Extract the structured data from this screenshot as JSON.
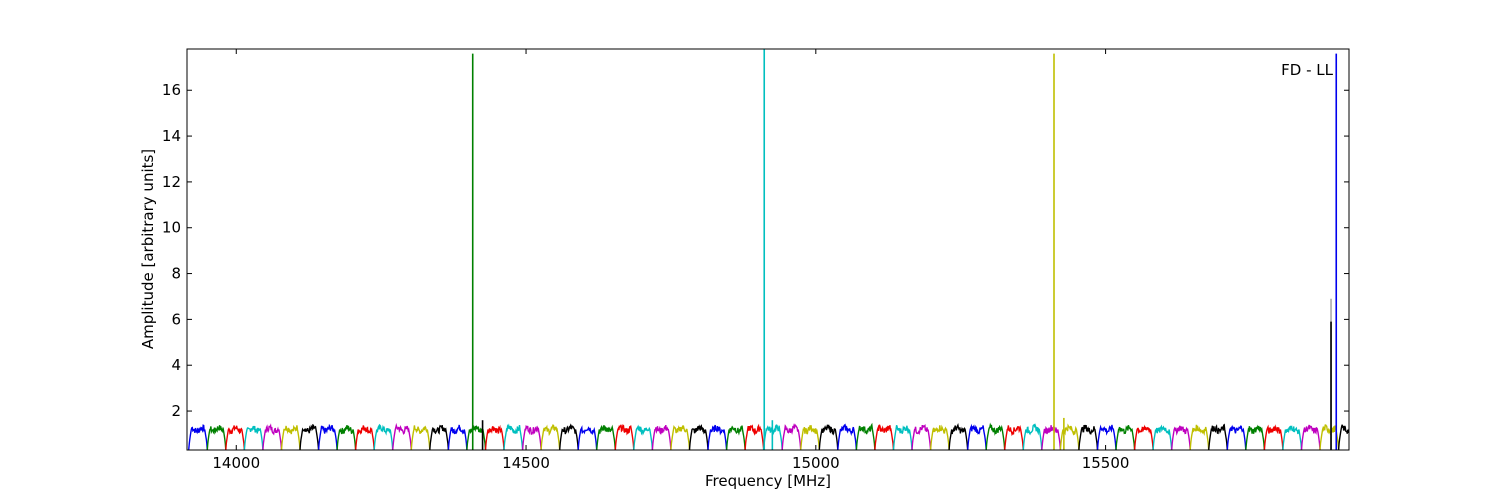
{
  "chart_data": {
    "type": "line",
    "title": "",
    "annotation": "FD - LL",
    "xlabel": "Frequency [MHz]",
    "ylabel": "Amplitude [arbitrary units]",
    "xlim": [
      13915,
      15920
    ],
    "ylim": [
      0.3,
      17.8
    ],
    "x_ticks": [
      14000,
      14500,
      15000,
      15500
    ],
    "x_tick_labels": [
      "14000",
      "14500",
      "15000",
      "15500"
    ],
    "y_ticks": [
      2,
      4,
      6,
      8,
      10,
      12,
      14,
      16
    ],
    "y_tick_labels": [
      "2",
      "4",
      "6",
      "8",
      "10",
      "12",
      "14",
      "16"
    ],
    "grid": false,
    "legend": "none",
    "channel_width_mhz": 32,
    "channel_start_mhz": 13918,
    "channel_colors": [
      "#0000ee",
      "#008000",
      "#ee0000",
      "#00bfbf",
      "#bf00bf",
      "#bfbf00",
      "#000000"
    ],
    "channel_profile": {
      "note_scale": "relative passband shape, amplitude of band top",
      "band_top": 1.2,
      "edge_min": 0.3
    },
    "spikes": [
      {
        "x": 14408,
        "y": 17.6,
        "color": "#008000"
      },
      {
        "x": 14911,
        "y": 17.8,
        "color": "#00bfbf"
      },
      {
        "x": 15411,
        "y": 17.6,
        "color": "#bfbf00"
      },
      {
        "x": 15889,
        "y": 6.9,
        "color": "#aaaaaa"
      },
      {
        "x": 15889,
        "y": 5.9,
        "color": "#000000"
      },
      {
        "x": 15898,
        "y": 17.6,
        "color": "#0000ee"
      }
    ],
    "minor_spikes": [
      {
        "x": 14425,
        "y": 1.6,
        "color": "#000000"
      },
      {
        "x": 14925,
        "y": 1.6,
        "color": "#00bfbf"
      },
      {
        "x": 15428,
        "y": 1.7,
        "color": "#bfbf00"
      }
    ]
  }
}
